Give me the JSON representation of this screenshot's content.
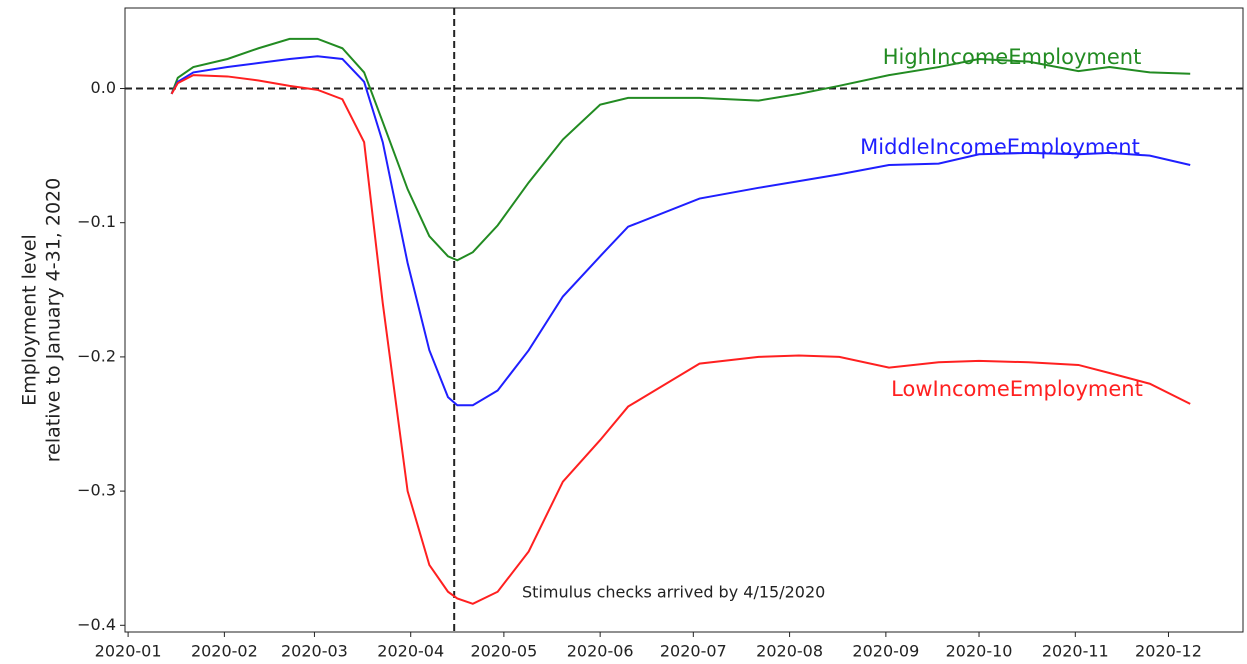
{
  "chart_data": {
    "type": "line",
    "y_label": [
      "Employment level",
      "relative to January 4-31, 2020"
    ],
    "annotation": "Stimulus checks arrived by 4/15/2020",
    "vline": "2020-04-15",
    "hline": 0,
    "x": [
      "2020-01-15",
      "2020-01-17",
      "2020-01-22",
      "2020-02-02",
      "2020-02-12",
      "2020-02-22",
      "2020-03-02",
      "2020-03-10",
      "2020-03-17",
      "2020-03-23",
      "2020-03-31",
      "2020-04-07",
      "2020-04-13",
      "2020-04-16",
      "2020-04-21",
      "2020-04-29",
      "2020-05-09",
      "2020-05-20",
      "2020-06-01",
      "2020-06-10",
      "2020-07-03",
      "2020-07-22",
      "2020-08-04",
      "2020-08-17",
      "2020-09-02",
      "2020-09-18",
      "2020-10-01",
      "2020-10-17",
      "2020-11-02",
      "2020-11-12",
      "2020-11-25",
      "2020-12-08"
    ],
    "series": [
      {
        "name": "HighIncomeEmployment",
        "color": "#228b22",
        "values": [
          -0.004,
          0.008,
          0.016,
          0.022,
          0.03,
          0.037,
          0.037,
          0.03,
          0.012,
          -0.025,
          -0.075,
          -0.11,
          -0.125,
          -0.128,
          -0.122,
          -0.102,
          -0.07,
          -0.038,
          -0.012,
          -0.007,
          -0.007,
          -0.009,
          -0.004,
          0.002,
          0.01,
          0.016,
          0.022,
          0.02,
          0.013,
          0.016,
          0.012,
          0.011
        ]
      },
      {
        "name": "MiddleIncomeEmployment",
        "color": "#1f1fff",
        "values": [
          -0.004,
          0.005,
          0.012,
          0.016,
          0.019,
          0.022,
          0.024,
          0.022,
          0.005,
          -0.04,
          -0.13,
          -0.195,
          -0.23,
          -0.236,
          -0.236,
          -0.225,
          -0.195,
          -0.155,
          -0.125,
          -0.103,
          -0.082,
          -0.074,
          -0.069,
          -0.064,
          -0.057,
          -0.056,
          -0.049,
          -0.048,
          -0.049,
          -0.048,
          -0.05,
          -0.057
        ]
      },
      {
        "name": "LowIncomeEmployment",
        "color": "#ff2020",
        "values": [
          -0.004,
          0.004,
          0.01,
          0.009,
          0.006,
          0.002,
          -0.001,
          -0.008,
          -0.04,
          -0.16,
          -0.3,
          -0.355,
          -0.375,
          -0.38,
          -0.384,
          -0.375,
          -0.345,
          -0.293,
          -0.262,
          -0.237,
          -0.205,
          -0.2,
          -0.199,
          -0.2,
          -0.208,
          -0.204,
          -0.203,
          -0.204,
          -0.206,
          -0.212,
          -0.22,
          -0.235
        ]
      }
    ],
    "xlim": [
      "2019-12-31",
      "2020-12-25"
    ],
    "xticks": [
      {
        "value": "2020-01-01",
        "label": "2020-01"
      },
      {
        "value": "2020-02-01",
        "label": "2020-02"
      },
      {
        "value": "2020-03-01",
        "label": "2020-03"
      },
      {
        "value": "2020-04-01",
        "label": "2020-04"
      },
      {
        "value": "2020-05-01",
        "label": "2020-05"
      },
      {
        "value": "2020-06-01",
        "label": "2020-06"
      },
      {
        "value": "2020-07-01",
        "label": "2020-07"
      },
      {
        "value": "2020-08-01",
        "label": "2020-08"
      },
      {
        "value": "2020-09-01",
        "label": "2020-09"
      },
      {
        "value": "2020-10-01",
        "label": "2020-10"
      },
      {
        "value": "2020-11-01",
        "label": "2020-11"
      },
      {
        "value": "2020-12-01",
        "label": "2020-12"
      }
    ],
    "ylim": [
      -0.405,
      0.06
    ],
    "yticks": [
      {
        "value": -0.4,
        "label": "−0.4"
      },
      {
        "value": -0.3,
        "label": "−0.3"
      },
      {
        "value": -0.2,
        "label": "−0.2"
      },
      {
        "value": -0.1,
        "label": "−0.1"
      },
      {
        "value": 0,
        "label": "0.0"
      }
    ]
  }
}
